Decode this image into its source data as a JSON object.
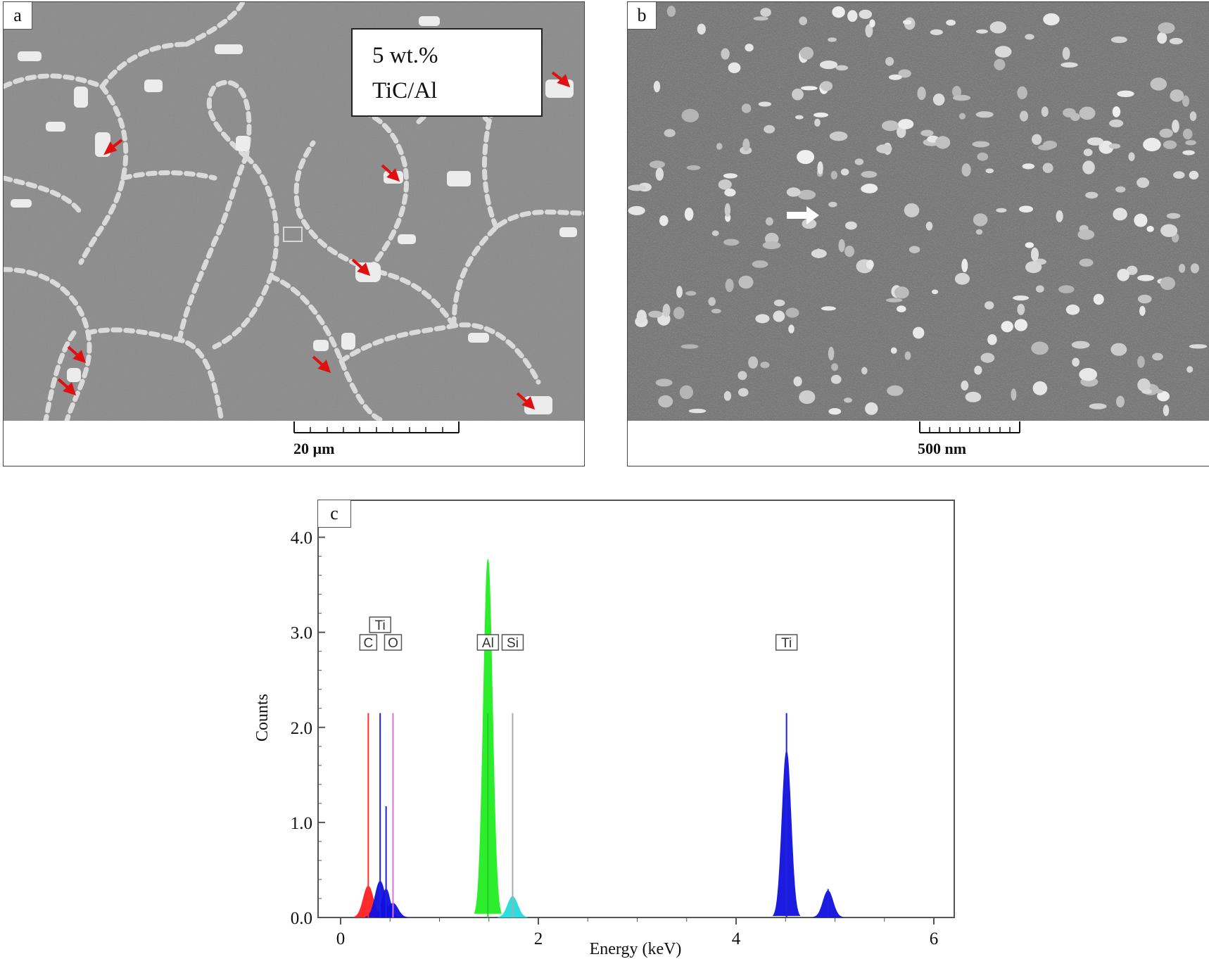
{
  "panels": {
    "a": {
      "letter": "a",
      "label_line1": "5 wt.%",
      "label_line2": "TiC/Al",
      "scale_label": "20 µm"
    },
    "b": {
      "letter": "b",
      "scale_label": "500 nm"
    },
    "c": {
      "letter": "c"
    }
  },
  "chart_data": {
    "type": "area",
    "xlabel": "Energy (keV)",
    "ylabel": "Counts",
    "xlim": [
      -0.3,
      6.3
    ],
    "ylim": [
      0,
      4.3
    ],
    "x_ticks": [
      0,
      2,
      4,
      6
    ],
    "x_tick_labels": [
      "0",
      "2",
      "4",
      "6"
    ],
    "y_ticks": [
      0,
      1,
      2,
      3,
      4
    ],
    "y_tick_labels": [
      "0.0",
      "1.0",
      "2.0",
      "3.0",
      "4.0"
    ],
    "grid": false,
    "peaks": [
      {
        "element": "C",
        "energy": 0.28,
        "height": 0.33,
        "width": 0.05,
        "color": "#ff2020"
      },
      {
        "element": "Ti",
        "energy": 0.4,
        "height": 0.38,
        "width": 0.05,
        "color": "#1010e0"
      },
      {
        "element": "Ti",
        "energy": 0.46,
        "height": 0.3,
        "width": 0.04,
        "color": "#1010e0"
      },
      {
        "element": "O",
        "energy": 0.53,
        "height": 0.15,
        "width": 0.05,
        "color": "#1010e0"
      },
      {
        "element": "Al",
        "energy": 1.49,
        "height": 3.77,
        "width": 0.045,
        "color": "#22ee22"
      },
      {
        "element": "Si",
        "energy": 1.74,
        "height": 0.22,
        "width": 0.05,
        "color": "#22dddd"
      },
      {
        "element": "Ti",
        "energy": 4.51,
        "height": 1.75,
        "width": 0.045,
        "color": "#1010e0"
      },
      {
        "element": "Ti",
        "energy": 4.93,
        "height": 0.28,
        "width": 0.05,
        "color": "#1010e0"
      }
    ],
    "element_lines": [
      {
        "element": "C",
        "energy": 0.28,
        "height": 2.15,
        "color": "#ff3030"
      },
      {
        "element": "Ti",
        "energy": 0.4,
        "height": 2.15,
        "color": "#2020dd"
      },
      {
        "element": "Ti",
        "energy": 0.46,
        "height": 1.17,
        "color": "#2020dd"
      },
      {
        "element": "O",
        "energy": 0.53,
        "height": 2.15,
        "color": "#e070e0"
      },
      {
        "element": "Al",
        "energy": 1.49,
        "height": 2.15,
        "color": "#22cc22"
      },
      {
        "element": "Si",
        "energy": 1.74,
        "height": 2.15,
        "color": "#aaaaaa"
      },
      {
        "element": "Ti",
        "energy": 4.51,
        "height": 2.15,
        "color": "#2020dd"
      },
      {
        "element": "Ti",
        "energy": 4.93,
        "height": 0.3,
        "color": "#2020dd"
      }
    ],
    "element_labels": [
      {
        "text": "C",
        "energy": 0.28,
        "row": 1
      },
      {
        "text": "Ti",
        "energy": 0.4,
        "row": 2
      },
      {
        "text": "O",
        "energy": 0.53,
        "row": 1
      },
      {
        "text": "Al",
        "energy": 1.49,
        "row": 1
      },
      {
        "text": "Si",
        "energy": 1.74,
        "row": 1
      },
      {
        "text": "Ti",
        "energy": 4.51,
        "row": 1
      }
    ]
  },
  "colors": {
    "sem_matrix": "#8a8a8a",
    "sem_particles": "#e8e8e8",
    "arrow_red": "#e01010"
  }
}
